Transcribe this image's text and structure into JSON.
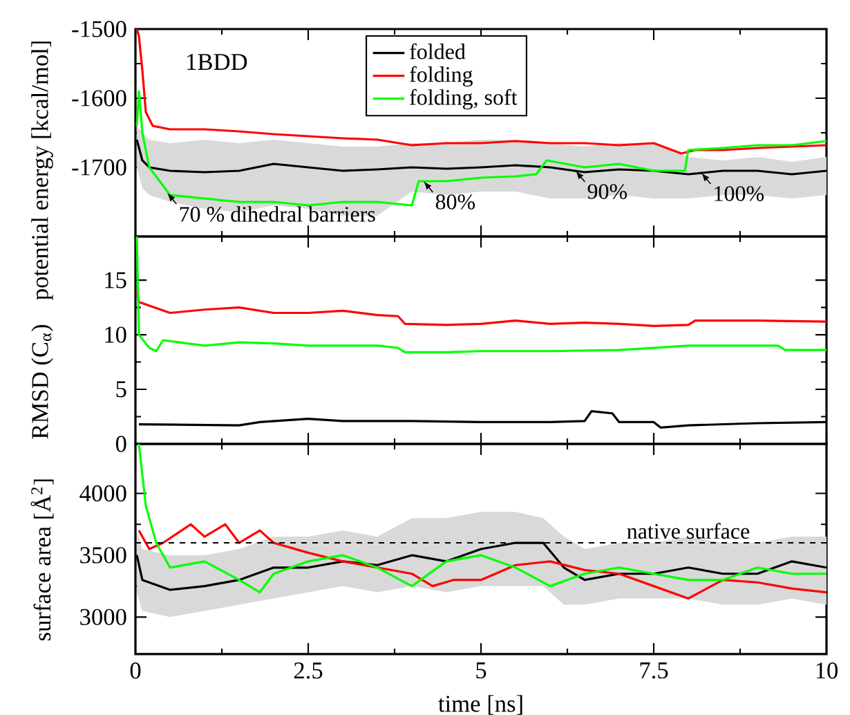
{
  "chart_data": [
    {
      "type": "line",
      "ylabel": "potential energy [kcal/mol]",
      "xlim": [
        0,
        10
      ],
      "xticks": [
        0,
        2.5,
        5,
        7.5,
        10
      ],
      "ylim": [
        -1800,
        -1500
      ],
      "yticks": [
        -1700,
        -1600,
        -1500
      ],
      "tick_labels": "y",
      "legend": "top",
      "annotations": [
        "1BDD",
        {
          "text": "70 % dihedral barriers",
          "x": 0.46,
          "y": -1737
        },
        {
          "text": "80%",
          "x": 4.17,
          "y": -1720
        },
        {
          "text": "90%",
          "x": 6.37,
          "y": -1705
        },
        {
          "text": "100%",
          "x": 8.19,
          "y": -1708
        }
      ],
      "series": [
        {
          "name": "folded",
          "color": "#000000",
          "x": [
            0.02,
            0.1,
            0.2,
            0.5,
            1,
            1.5,
            2,
            2.5,
            3,
            3.5,
            4,
            4.5,
            5,
            5.5,
            6,
            6.5,
            7,
            7.5,
            8,
            8.5,
            9,
            9.5,
            10
          ],
          "values": [
            -1660,
            -1690,
            -1700,
            -1705,
            -1707,
            -1705,
            -1695,
            -1700,
            -1705,
            -1703,
            -1700,
            -1702,
            -1700,
            -1697,
            -1700,
            -1707,
            -1703,
            -1705,
            -1710,
            -1705,
            -1705,
            -1710,
            -1705
          ],
          "lower": [
            -1700,
            -1730,
            -1740,
            -1750,
            -1760,
            -1765,
            -1755,
            -1760,
            -1770,
            -1770,
            -1735,
            -1740,
            -1735,
            -1735,
            -1745,
            -1745,
            -1740,
            -1745,
            -1745,
            -1740,
            -1740,
            -1745,
            -1740
          ],
          "upper": [
            -1640,
            -1650,
            -1660,
            -1665,
            -1660,
            -1665,
            -1660,
            -1665,
            -1670,
            -1670,
            -1665,
            -1665,
            -1660,
            -1660,
            -1665,
            -1670,
            -1665,
            -1665,
            -1685,
            -1690,
            -1685,
            -1692,
            -1685
          ]
        },
        {
          "name": "folding",
          "color": "#ff0000",
          "x": [
            0.02,
            0.05,
            0.1,
            0.15,
            0.25,
            0.5,
            1,
            1.5,
            2,
            2.5,
            3,
            3.5,
            4,
            4.5,
            5,
            5.5,
            6,
            6.5,
            7,
            7.5,
            7.9,
            8.1,
            8.5,
            9,
            9.5,
            10
          ],
          "values": [
            -1500,
            -1510,
            -1560,
            -1620,
            -1640,
            -1645,
            -1645,
            -1648,
            -1652,
            -1655,
            -1658,
            -1660,
            -1668,
            -1665,
            -1665,
            -1662,
            -1665,
            -1665,
            -1668,
            -1665,
            -1680,
            -1675,
            -1675,
            -1672,
            -1670,
            -1668
          ]
        },
        {
          "name": "folding, soft",
          "color": "#00ff00",
          "x": [
            0.02,
            0.05,
            0.1,
            0.2,
            0.5,
            1,
            1.5,
            2,
            2.5,
            3,
            3.5,
            4.0,
            4.1,
            4.5,
            5,
            5.5,
            5.8,
            5.95,
            6.5,
            7,
            7.5,
            7.95,
            8.0,
            8.5,
            9,
            9.5,
            10
          ],
          "values": [
            -1640,
            -1590,
            -1650,
            -1700,
            -1740,
            -1745,
            -1750,
            -1750,
            -1755,
            -1750,
            -1750,
            -1755,
            -1720,
            -1720,
            -1715,
            -1713,
            -1710,
            -1690,
            -1700,
            -1695,
            -1705,
            -1705,
            -1675,
            -1672,
            -1668,
            -1668,
            -1662
          ]
        }
      ]
    },
    {
      "type": "line",
      "ylabel": "RMSD (C$_{α}$)",
      "xlim": [
        0,
        10
      ],
      "xticks": [
        0,
        2.5,
        5,
        7.5,
        10
      ],
      "ylim": [
        0,
        19
      ],
      "yticks": [
        0,
        5,
        10,
        15
      ],
      "tick_labels": "y",
      "series": [
        {
          "color": "#000000",
          "x": [
            0.05,
            1.5,
            1.8,
            2.5,
            3,
            4,
            5,
            6,
            6.5,
            6.6,
            6.9,
            7,
            7.5,
            7.6,
            8,
            9,
            10
          ],
          "values": [
            1.8,
            1.7,
            2.0,
            2.3,
            2.1,
            2.1,
            2.0,
            2.0,
            2.1,
            3.0,
            2.8,
            2.0,
            2.0,
            1.5,
            1.7,
            1.9,
            2.0
          ]
        },
        {
          "color": "#ff0000",
          "x": [
            0.02,
            0.05,
            0.5,
            1,
            1.5,
            2,
            2.5,
            3,
            3.5,
            3.8,
            3.9,
            4.5,
            5,
            5.5,
            6,
            6.5,
            7,
            7.5,
            8,
            8.1,
            9,
            10
          ],
          "values": [
            14,
            13,
            12,
            12.3,
            12.5,
            12,
            12,
            12.2,
            11.8,
            11.7,
            11,
            10.9,
            11,
            11.3,
            11,
            11.1,
            11,
            10.8,
            10.9,
            11.3,
            11.3,
            11.2
          ]
        },
        {
          "color": "#00ff00",
          "x": [
            0.02,
            0.05,
            0.2,
            0.3,
            0.4,
            1,
            1.5,
            2,
            2.5,
            3,
            3.5,
            3.8,
            3.9,
            4.5,
            5,
            6,
            7,
            7.5,
            8,
            9,
            9.3,
            9.4,
            10
          ],
          "values": [
            19,
            10,
            8.8,
            8.5,
            9.5,
            9,
            9.3,
            9.2,
            9,
            9,
            9,
            8.8,
            8.4,
            8.4,
            8.5,
            8.5,
            8.6,
            8.8,
            9,
            9,
            9,
            8.6,
            8.6
          ]
        }
      ]
    },
    {
      "type": "line",
      "xlabel": "time [ns]",
      "ylabel": "surface area [Å$^{2}$]",
      "xlim": [
        0,
        10
      ],
      "xticks": [
        0,
        2.5,
        5,
        7.5,
        10
      ],
      "ylim": [
        2700,
        4400
      ],
      "yticks": [
        3000,
        3500,
        4000
      ],
      "ref_lines": [
        {
          "axis": "y",
          "value": 3600,
          "label": "native surface",
          "line_style": "dashed",
          "color": "#000000"
        }
      ],
      "series": [
        {
          "color": "#000000",
          "x": [
            0.02,
            0.1,
            0.5,
            1,
            1.5,
            2,
            2.5,
            3,
            3.5,
            4,
            4.5,
            5,
            5.5,
            5.9,
            6.2,
            6.5,
            7,
            7.5,
            8,
            8.5,
            9,
            9.5,
            10
          ],
          "values": [
            3500,
            3300,
            3220,
            3250,
            3300,
            3400,
            3400,
            3450,
            3420,
            3500,
            3450,
            3550,
            3600,
            3600,
            3400,
            3300,
            3350,
            3350,
            3400,
            3350,
            3350,
            3450,
            3400
          ],
          "lower": [
            3200,
            3050,
            3000,
            3050,
            3100,
            3150,
            3200,
            3250,
            3200,
            3250,
            3200,
            3250,
            3250,
            3250,
            3100,
            3100,
            3150,
            3150,
            3150,
            3100,
            3100,
            3150,
            3100
          ],
          "upper": [
            3700,
            3550,
            3500,
            3500,
            3550,
            3650,
            3650,
            3700,
            3650,
            3800,
            3800,
            3850,
            3850,
            3800,
            3650,
            3550,
            3600,
            3600,
            3650,
            3600,
            3600,
            3650,
            3650
          ]
        },
        {
          "color": "#ff0000",
          "x": [
            0.05,
            0.2,
            0.4,
            0.8,
            1,
            1.3,
            1.5,
            1.8,
            2,
            2.5,
            3,
            3.5,
            4,
            4.3,
            4.6,
            5,
            5.5,
            6,
            6.5,
            7,
            7.5,
            8,
            8.5,
            9,
            9.5,
            10
          ],
          "values": [
            3700,
            3550,
            3600,
            3750,
            3650,
            3750,
            3600,
            3700,
            3600,
            3520,
            3450,
            3400,
            3350,
            3250,
            3300,
            3300,
            3420,
            3450,
            3380,
            3350,
            3250,
            3150,
            3300,
            3280,
            3230,
            3200
          ]
        },
        {
          "color": "#00ff00",
          "x": [
            0.05,
            0.15,
            0.3,
            0.5,
            1,
            1.5,
            1.8,
            2,
            2.5,
            3,
            3.5,
            4,
            4.5,
            5,
            5.5,
            6,
            6.5,
            7,
            7.5,
            8,
            8.5,
            9,
            9.5,
            10
          ],
          "values": [
            4400,
            3900,
            3600,
            3400,
            3450,
            3300,
            3200,
            3350,
            3450,
            3500,
            3400,
            3250,
            3450,
            3500,
            3400,
            3250,
            3350,
            3400,
            3350,
            3300,
            3300,
            3400,
            3350,
            3350
          ]
        }
      ]
    }
  ]
}
